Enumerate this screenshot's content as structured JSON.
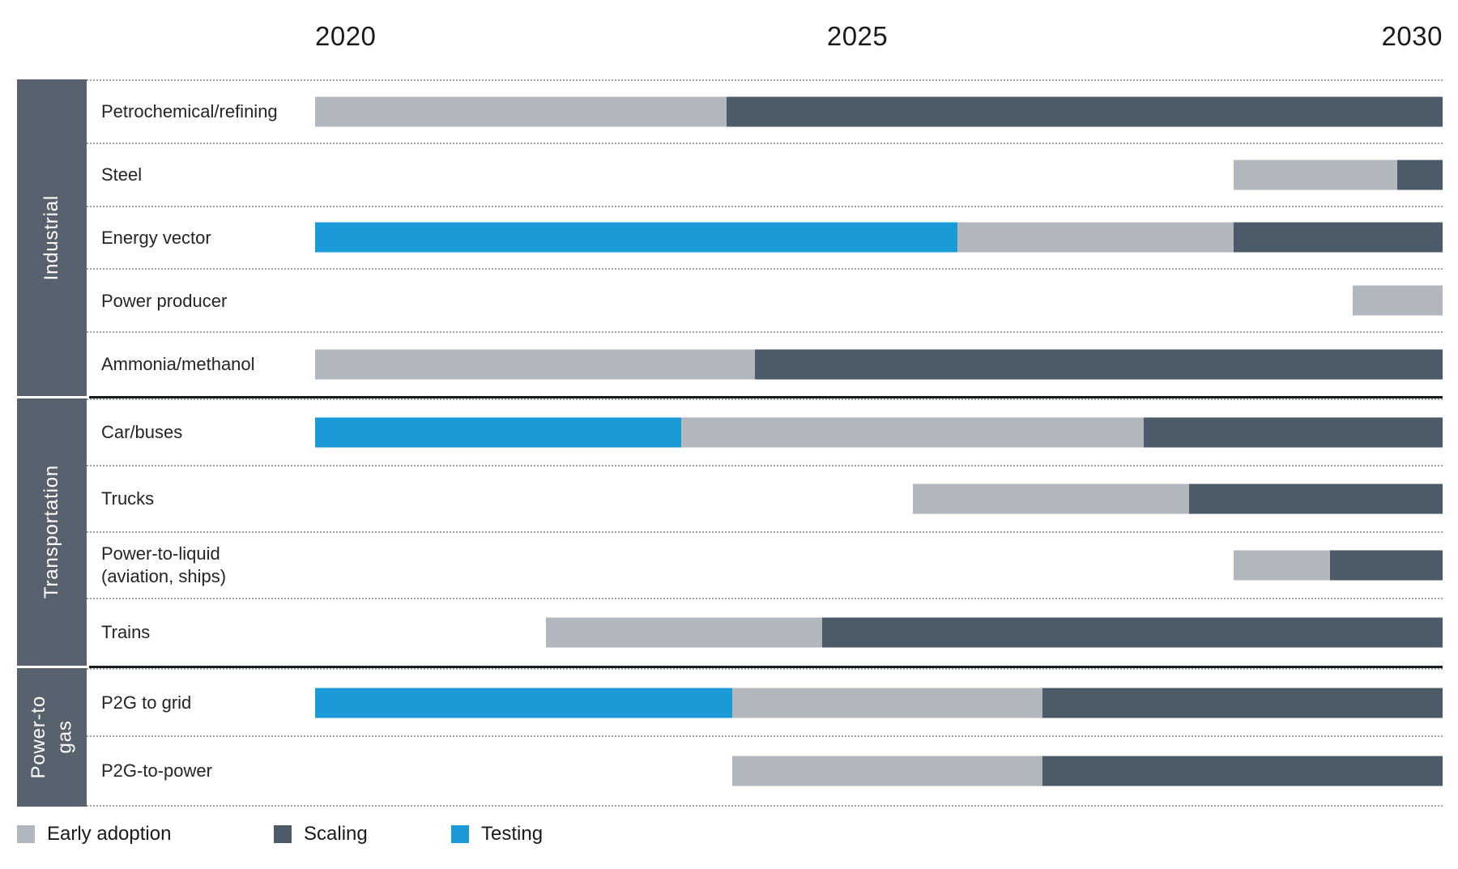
{
  "axis": {
    "labels": [
      "2020",
      "2025",
      "2030"
    ]
  },
  "legend": [
    {
      "id": "early",
      "label": "Early adoption",
      "color": "#b1b7bc"
    },
    {
      "id": "scaling",
      "label": "Scaling",
      "color": "#4d5a68"
    },
    {
      "id": "testing",
      "label": "Testing",
      "color": "#1b9ad8"
    }
  ],
  "phase_colors": {
    "early": "#b1b7bc",
    "scaling": "#4d5a68",
    "testing": "#1b9ad8"
  },
  "sidebar_color": "#57626e",
  "chart_data": {
    "type": "gantt-timeline",
    "x_range": [
      2020,
      2030
    ],
    "x_ticks": [
      2020,
      2025,
      2030
    ],
    "grid": "dotted-row-separators",
    "legend_position": "bottom-left",
    "phases": [
      "Early adoption",
      "Scaling",
      "Testing"
    ],
    "sections": [
      {
        "name": "Industrial",
        "rows": [
          {
            "label": "Petrochemical/refining",
            "segments": [
              {
                "phase": "early",
                "start": 2020,
                "end": 2023.65
              },
              {
                "phase": "scaling",
                "start": 2023.65,
                "end": 2030
              }
            ]
          },
          {
            "label": "Steel",
            "segments": [
              {
                "phase": "early",
                "start": 2028.15,
                "end": 2029.6
              },
              {
                "phase": "scaling",
                "start": 2029.6,
                "end": 2030
              }
            ]
          },
          {
            "label": "Energy vector",
            "segments": [
              {
                "phase": "testing",
                "start": 2020,
                "end": 2025.7
              },
              {
                "phase": "early",
                "start": 2025.7,
                "end": 2028.15
              },
              {
                "phase": "scaling",
                "start": 2028.15,
                "end": 2030
              }
            ]
          },
          {
            "label": "Power producer",
            "segments": [
              {
                "phase": "early",
                "start": 2029.2,
                "end": 2030
              }
            ]
          },
          {
            "label": "Ammonia/methanol",
            "segments": [
              {
                "phase": "early",
                "start": 2020,
                "end": 2023.9
              },
              {
                "phase": "scaling",
                "start": 2023.9,
                "end": 2030
              }
            ]
          }
        ]
      },
      {
        "name": "Transportation",
        "rows": [
          {
            "label": "Car/buses",
            "segments": [
              {
                "phase": "testing",
                "start": 2020,
                "end": 2023.25
              },
              {
                "phase": "early",
                "start": 2023.25,
                "end": 2027.35
              },
              {
                "phase": "scaling",
                "start": 2027.35,
                "end": 2030
              }
            ]
          },
          {
            "label": "Trucks",
            "segments": [
              {
                "phase": "early",
                "start": 2025.3,
                "end": 2027.75
              },
              {
                "phase": "scaling",
                "start": 2027.75,
                "end": 2030
              }
            ]
          },
          {
            "label": "Power-to-liquid\n(aviation, ships)",
            "segments": [
              {
                "phase": "early",
                "start": 2028.15,
                "end": 2029.0
              },
              {
                "phase": "scaling",
                "start": 2029.0,
                "end": 2030
              }
            ]
          },
          {
            "label": "Trains",
            "segments": [
              {
                "phase": "early",
                "start": 2022.05,
                "end": 2024.5
              },
              {
                "phase": "scaling",
                "start": 2024.5,
                "end": 2030
              }
            ]
          }
        ]
      },
      {
        "name": "Power-to\ngas",
        "rows": [
          {
            "label": "P2G to grid",
            "segments": [
              {
                "phase": "testing",
                "start": 2020,
                "end": 2023.7
              },
              {
                "phase": "early",
                "start": 2023.7,
                "end": 2026.45
              },
              {
                "phase": "scaling",
                "start": 2026.45,
                "end": 2030
              }
            ]
          },
          {
            "label": "P2G-to-power",
            "segments": [
              {
                "phase": "early",
                "start": 2023.7,
                "end": 2026.45
              },
              {
                "phase": "scaling",
                "start": 2026.45,
                "end": 2030
              }
            ]
          }
        ]
      }
    ]
  }
}
